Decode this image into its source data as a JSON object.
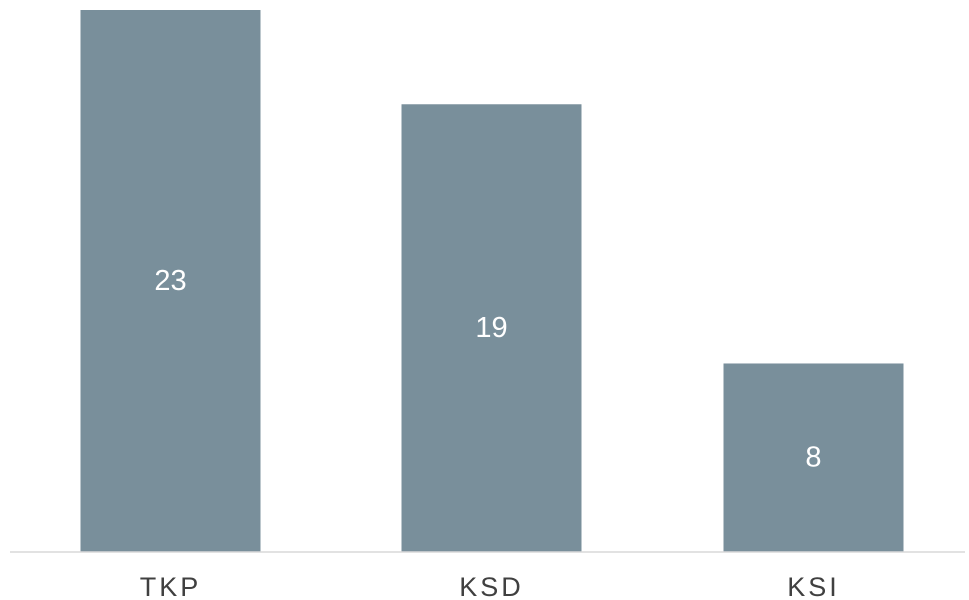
{
  "chart_data": {
    "type": "bar",
    "categories": [
      "TKP",
      "KSD",
      "KSI"
    ],
    "values": [
      23,
      19,
      8
    ],
    "data_labels": [
      "23",
      "19",
      "8"
    ],
    "title": "",
    "xlabel": "",
    "ylabel": "",
    "ylim": [
      0,
      23
    ],
    "grid": false,
    "legend": "none",
    "bar_color": "#798f9b",
    "axis_color": "#d9d9d9",
    "label_color": "#ffffff",
    "tick_color": "#404040"
  }
}
